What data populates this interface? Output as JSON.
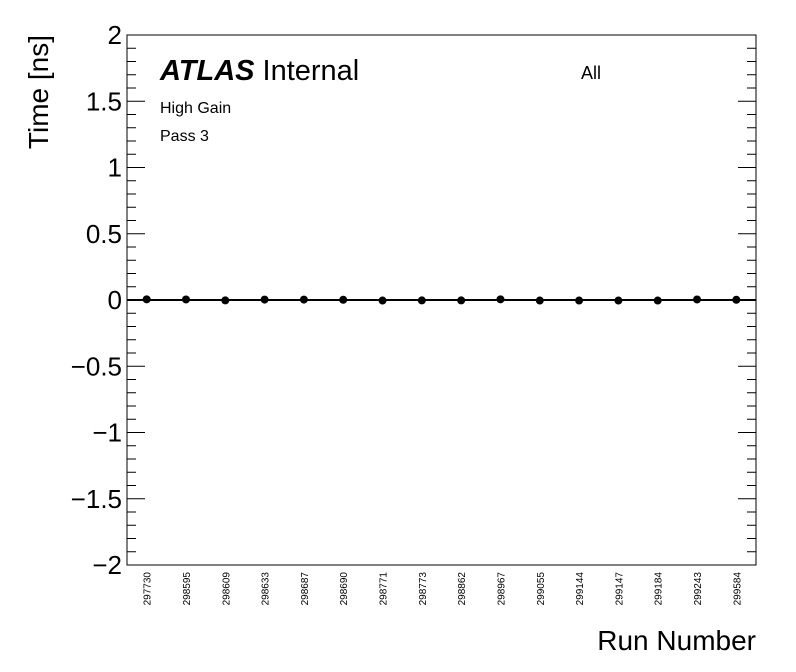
{
  "chart_data": {
    "type": "scatter",
    "atlas_label": "ATLAS",
    "atlas_status": "Internal",
    "annotations": [
      "High Gain",
      "Pass 3",
      "All"
    ],
    "x_label": "Run Number",
    "y_label": "Time [ns]",
    "categories": [
      "297730",
      "298595",
      "298609",
      "298633",
      "298687",
      "298690",
      "298771",
      "298773",
      "298862",
      "298967",
      "299055",
      "299144",
      "299147",
      "299184",
      "299243",
      "299584"
    ],
    "values": [
      0.005,
      0.004,
      -0.003,
      0.003,
      0.003,
      0.002,
      -0.004,
      -0.003,
      -0.003,
      0.005,
      -0.004,
      -0.004,
      -0.004,
      -0.004,
      0.004,
      0.002
    ],
    "color": "#000000",
    "ylim": [
      -2,
      2
    ],
    "yticks": [
      {
        "value": -2,
        "label": "−2"
      },
      {
        "value": -1.5,
        "label": "−1.5"
      },
      {
        "value": -1,
        "label": "−1"
      },
      {
        "value": -0.5,
        "label": "−0.5"
      },
      0,
      0.5,
      1,
      1.5,
      2
    ]
  }
}
